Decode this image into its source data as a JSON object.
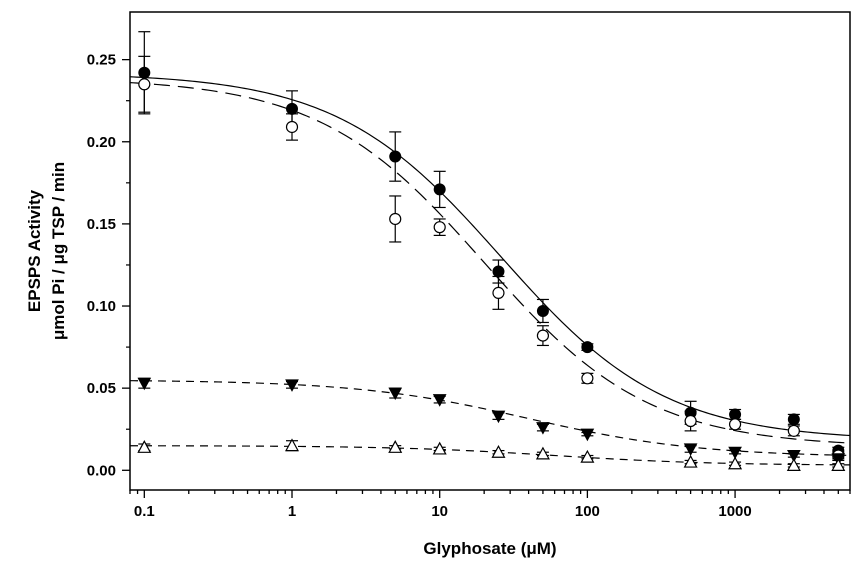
{
  "chart_data": {
    "type": "scatter",
    "x_scale": "log",
    "xlim": [
      0.08,
      6000
    ],
    "ylim": [
      -0.012,
      0.279
    ],
    "xlabel": "Glyphosate (μM)",
    "ylabel_line1": "EPSPS Activity",
    "ylabel_line2": "μmol Pi / μg TSP / min",
    "x_ticks": [
      0.1,
      1,
      10,
      100,
      1000
    ],
    "x_tick_labels": [
      "0.1",
      "1",
      "10",
      "100",
      "1000"
    ],
    "y_ticks": [
      0.0,
      0.05,
      0.1,
      0.15,
      0.2,
      0.25
    ],
    "y_tick_labels": [
      "0.00",
      "0.05",
      "0.10",
      "0.15",
      "0.20",
      "0.25"
    ],
    "grid": false,
    "legend": "none",
    "series": [
      {
        "marker": "filled-circle",
        "line": "solid",
        "x": [
          0.1,
          1,
          5,
          10,
          25,
          50,
          100,
          500,
          1000,
          2500,
          5000
        ],
        "y": [
          0.242,
          0.22,
          0.191,
          0.171,
          0.121,
          0.097,
          0.075,
          0.035,
          0.034,
          0.031,
          0.012
        ],
        "err": [
          0.025,
          0.011,
          0.015,
          0.011,
          0.007,
          0.007,
          0.002,
          0.007,
          0.003,
          0.003,
          0.002
        ],
        "fit": {
          "bottom": 0.018,
          "top": 0.242,
          "ic50": 26,
          "hill": 0.78
        }
      },
      {
        "marker": "open-circle",
        "line": "long-dash",
        "x": [
          0.1,
          1,
          5,
          10,
          25,
          50,
          100,
          500,
          1000,
          2500,
          5000
        ],
        "y": [
          0.235,
          0.209,
          0.153,
          0.148,
          0.108,
          0.082,
          0.056,
          0.03,
          0.028,
          0.024,
          0.009
        ],
        "err": [
          0.017,
          0.008,
          0.014,
          0.005,
          0.01,
          0.006,
          0.003,
          0.006,
          0.003,
          0.003,
          0.002
        ],
        "fit": {
          "bottom": 0.014,
          "top": 0.239,
          "ic50": 20,
          "hill": 0.78
        }
      },
      {
        "marker": "filled-triangle-down",
        "line": "short-dash",
        "x": [
          0.1,
          1,
          5,
          10,
          25,
          50,
          100,
          500,
          1000,
          2500,
          5000
        ],
        "y": [
          0.053,
          0.052,
          0.047,
          0.043,
          0.033,
          0.026,
          0.022,
          0.013,
          0.011,
          0.009,
          0.007
        ],
        "err": [
          0.003,
          0.002,
          0.003,
          0.002,
          0.002,
          0.002,
          0.001,
          0.002,
          0.001,
          0.001,
          0.001
        ],
        "fit": {
          "bottom": 0.008,
          "top": 0.055,
          "ic50": 40,
          "hill": 0.75
        }
      },
      {
        "marker": "open-triangle-up",
        "line": "short-dash",
        "x": [
          0.1,
          1,
          5,
          10,
          25,
          50,
          100,
          500,
          1000,
          2500,
          5000
        ],
        "y": [
          0.014,
          0.015,
          0.014,
          0.013,
          0.011,
          0.01,
          0.008,
          0.005,
          0.004,
          0.003,
          0.003
        ],
        "err": [
          0.002,
          0.003,
          0.001,
          0.001,
          0.001,
          0.001,
          0.001,
          0.001,
          0.001,
          0.001,
          0.001
        ],
        "fit": {
          "bottom": 0.003,
          "top": 0.015,
          "ic50": 60,
          "hill": 0.8
        }
      }
    ]
  }
}
